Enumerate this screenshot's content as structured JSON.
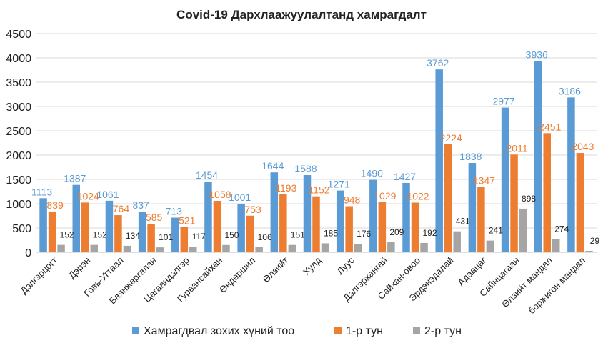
{
  "chart_data": {
    "type": "bar",
    "title": "Covid-19  Дархлаажуулалтанд хамрагдалт",
    "xlabel": "",
    "ylabel": "",
    "ylim": [
      0,
      4500
    ],
    "yticks": [
      "0",
      "500",
      "1000",
      "1500",
      "2000",
      "2500",
      "3000",
      "3500",
      "4000",
      "4500"
    ],
    "grid": true,
    "legend_position": "bottom",
    "categories": [
      "Дэлгэрцогт",
      "Дэрэн",
      "Говь-Угтаал",
      "Баянжаргалан",
      "Цагаандэлгэр",
      "Гурвансайхан",
      "Өндөршил",
      "Өлзийт",
      "Хулд",
      "Луус",
      "Дэлгэрхангай",
      "Сайхан-овоо",
      "Эрдэнэдалай",
      "Адаацаг",
      "Сайнцагаан",
      "Өлзийт мандал",
      "боржигон мандал"
    ],
    "series": [
      {
        "name": "Хамрагдвал зохих хүний тоо",
        "color": "#5b9bd5",
        "label_color": "#5b9bd5",
        "values": [
          1113,
          1387,
          1061,
          837,
          713,
          1454,
          1001,
          1644,
          1588,
          1271,
          1490,
          1427,
          3762,
          1838,
          2977,
          3936,
          3186
        ]
      },
      {
        "name": "1-р тун",
        "color": "#ed7d31",
        "label_color": "#ed7d31",
        "values": [
          839,
          1024,
          764,
          585,
          521,
          1058,
          753,
          1193,
          1152,
          948,
          1029,
          1022,
          2224,
          1347,
          2011,
          2451,
          2043
        ]
      },
      {
        "name": "2-р тун",
        "color": "#a5a5a5",
        "label_color": "#222222",
        "values": [
          152,
          152,
          134,
          101,
          117,
          150,
          106,
          151,
          185,
          176,
          209,
          192,
          431,
          241,
          898,
          274,
          29
        ]
      }
    ]
  }
}
